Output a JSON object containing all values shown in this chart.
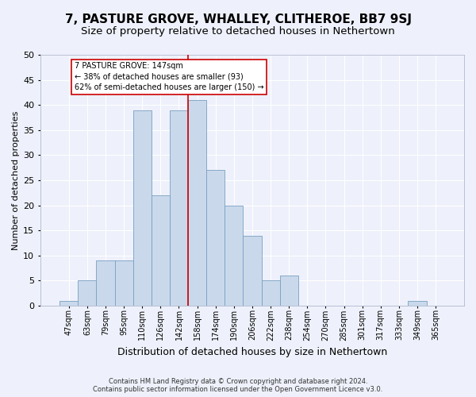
{
  "title": "7, PASTURE GROVE, WHALLEY, CLITHEROE, BB7 9SJ",
  "subtitle": "Size of property relative to detached houses in Nethertown",
  "xlabel": "Distribution of detached houses by size in Nethertown",
  "ylabel": "Number of detached properties",
  "footer_line1": "Contains HM Land Registry data © Crown copyright and database right 2024.",
  "footer_line2": "Contains public sector information licensed under the Open Government Licence v3.0.",
  "bin_labels": [
    "47sqm",
    "63sqm",
    "79sqm",
    "95sqm",
    "110sqm",
    "126sqm",
    "142sqm",
    "158sqm",
    "174sqm",
    "190sqm",
    "206sqm",
    "222sqm",
    "238sqm",
    "254sqm",
    "270sqm",
    "285sqm",
    "301sqm",
    "317sqm",
    "333sqm",
    "349sqm",
    "365sqm"
  ],
  "bar_heights": [
    1,
    5,
    9,
    9,
    39,
    22,
    39,
    41,
    27,
    20,
    14,
    5,
    6,
    0,
    0,
    0,
    0,
    0,
    0,
    1,
    0
  ],
  "bar_color": "#c9d9eb",
  "bar_edge_color": "#7a9fc0",
  "vline_x": 6.5,
  "highlight_color": "#cc0000",
  "annotation_text": "7 PASTURE GROVE: 147sqm\n← 38% of detached houses are smaller (93)\n62% of semi-detached houses are larger (150) →",
  "ylim": [
    0,
    50
  ],
  "yticks": [
    0,
    5,
    10,
    15,
    20,
    25,
    30,
    35,
    40,
    45,
    50
  ],
  "background_color": "#eef1fb",
  "grid_color": "#ffffff",
  "title_fontsize": 11,
  "subtitle_fontsize": 9.5,
  "ylabel_fontsize": 8,
  "xlabel_fontsize": 9,
  "tick_fontsize": 7,
  "ytick_fontsize": 8,
  "annotation_fontsize": 7,
  "footer_fontsize": 6
}
